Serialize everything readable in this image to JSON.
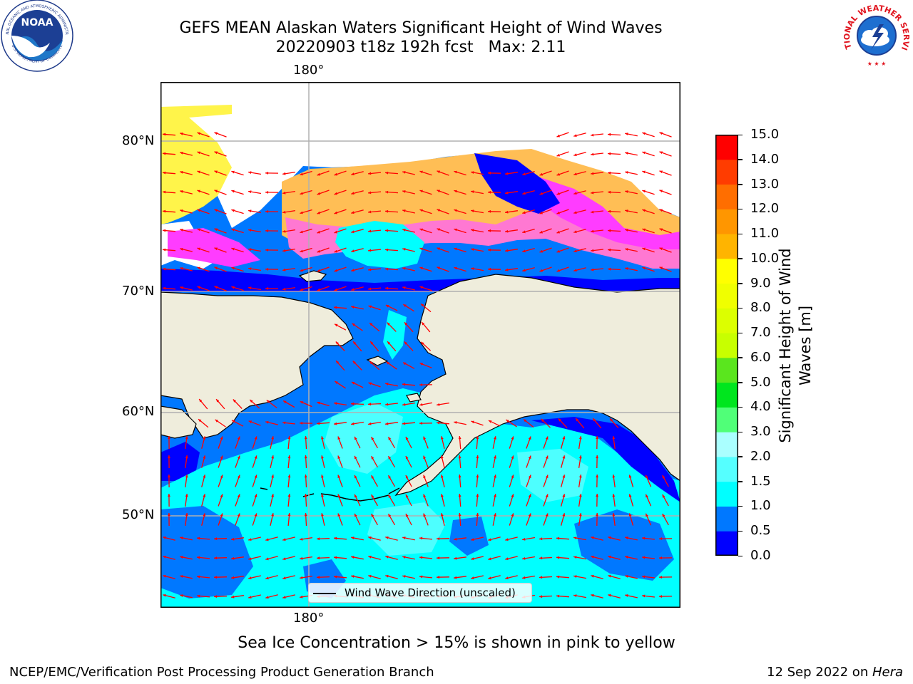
{
  "title": {
    "line1": "GEFS MEAN Alaskan Waters Significant Height of Wind Waves",
    "line2": "20220903 t18z 192h fcst   Max: 2.11"
  },
  "map": {
    "lat_labels": [
      "80°N",
      "70°N",
      "60°N",
      "50°N"
    ],
    "lon_label_top": "180°",
    "lon_label_bottom": "180°",
    "legend_label": "Wind Wave Direction (unscaled)",
    "colors": {
      "land": "#efeddc",
      "ice_white": "#ffffff",
      "ice_yellow": "#fff44a",
      "ice_orange": "#ffbe55",
      "ice_pink": "#ff78d2",
      "ice_magenta": "#ff3cff",
      "ocean_dark_blue": "#0000ff",
      "ocean_blue": "#0078ff",
      "ocean_cyan": "#00ffff",
      "ocean_light_cyan": "#55ffff",
      "arrow": "#ff0000",
      "grid": "#b0b0b0"
    }
  },
  "colorbar": {
    "title": "Significant Height of Wind\nWaves [m]",
    "ticks": [
      "15.0",
      "14.0",
      "13.0",
      "12.0",
      "11.0",
      "10.0",
      "9.0",
      "8.0",
      "7.0",
      "6.0",
      "5.0",
      "4.0",
      "3.0",
      "2.0",
      "1.5",
      "1.0",
      "0.5",
      "0.0"
    ],
    "segments": [
      {
        "from": "0.0",
        "to": "0.5",
        "color": "#0000ff"
      },
      {
        "from": "0.5",
        "to": "1.0",
        "color": "#0078ff"
      },
      {
        "from": "1.0",
        "to": "1.5",
        "color": "#00ffff"
      },
      {
        "from": "1.5",
        "to": "2.0",
        "color": "#55ffff"
      },
      {
        "from": "2.0",
        "to": "3.0",
        "color": "#aaffff"
      },
      {
        "from": "3.0",
        "to": "4.0",
        "color": "#50ff78"
      },
      {
        "from": "4.0",
        "to": "5.0",
        "color": "#00e61e"
      },
      {
        "from": "5.0",
        "to": "6.0",
        "color": "#5ae61e"
      },
      {
        "from": "6.0",
        "to": "7.0",
        "color": "#c8ff00"
      },
      {
        "from": "7.0",
        "to": "8.0",
        "color": "#dcff00"
      },
      {
        "from": "8.0",
        "to": "9.0",
        "color": "#f0ff00"
      },
      {
        "from": "9.0",
        "to": "10.0",
        "color": "#ffff00"
      },
      {
        "from": "10.0",
        "to": "11.0",
        "color": "#ffb400"
      },
      {
        "from": "11.0",
        "to": "12.0",
        "color": "#ff9600"
      },
      {
        "from": "12.0",
        "to": "13.0",
        "color": "#ff6e00"
      },
      {
        "from": "13.0",
        "to": "14.0",
        "color": "#ff3c00"
      },
      {
        "from": "14.0",
        "to": "15.0",
        "color": "#ff0000"
      }
    ]
  },
  "footer": {
    "note": "Sea Ice Concentration > 15% is shown in pink to yellow",
    "credit": "NCEP/EMC/Verification Post Processing Product Generation Branch",
    "date_prefix": "12 Sep 2022 on ",
    "date_machine": "Hera"
  },
  "logos": {
    "left_text": "NOAA",
    "left_ring": "NATIONAL OCEANIC AND ATMOSPHERIC ADMINISTRATION",
    "left_ring_bottom": "U.S. DEPARTMENT OF COMMERCE",
    "right_ring": "NATIONAL WEATHER SERVICE"
  }
}
